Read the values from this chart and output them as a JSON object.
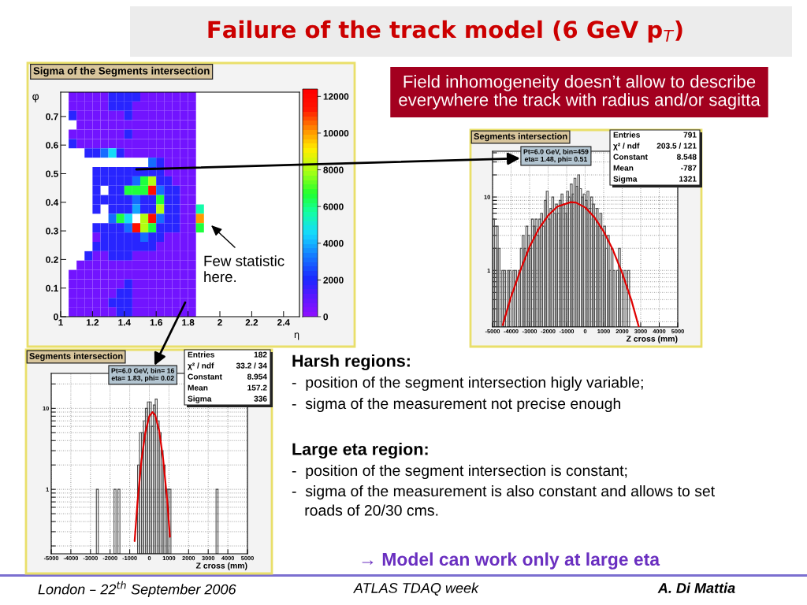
{
  "chart_data": [
    {
      "type": "other",
      "title": "Failure of the track model (6 GeV p$_{T}$)",
      "annotations": [
        "Field inhomogeneity doesn’t allow to describe\neverywhere the track with radius and/or sagitta",
        "Harsh regions:",
        "-  position of the segment intersection higly variable;",
        "-  sigma of the measurement not precise enough",
        "Large eta region:",
        "-  position of the segment intersection is constant;",
        "-  sigma of the measurement is also constant and allows to set\n   roads of 20/30 cms.",
        "→ Model can work only at large eta",
        "London – 22$^{th}$ September 2006",
        "ATLAS TDAQ week",
        "A. Di Mattia"
      ]
    },
    {
      "type": "heatmap",
      "title": "Sigma of the Segments intersection",
      "xlabel": "η",
      "ylabel": "φ",
      "x": [
        1.075,
        1.125,
        1.175,
        1.225,
        1.275,
        1.325,
        1.375,
        1.425,
        1.475,
        1.525,
        1.575,
        1.625,
        1.675,
        1.725,
        1.775,
        1.825,
        1.875
      ],
      "cells": [
        [
          500,
          500,
          500,
          500,
          500,
          1800,
          1800,
          1800,
          1800,
          500,
          500,
          500,
          500,
          500,
          500,
          500,
          null
        ],
        [
          500,
          500,
          500,
          500,
          500,
          1800,
          1800,
          1800,
          500,
          500,
          500,
          500,
          500,
          500,
          500,
          500,
          null
        ],
        [
          1800,
          500,
          500,
          500,
          500,
          500,
          500,
          1800,
          500,
          500,
          500,
          500,
          500,
          500,
          500,
          500,
          null
        ],
        [
          null,
          500,
          500,
          500,
          500,
          500,
          500,
          500,
          500,
          500,
          500,
          500,
          500,
          500,
          500,
          500,
          null
        ],
        [
          500,
          500,
          500,
          500,
          500,
          500,
          500,
          1800,
          500,
          500,
          500,
          500,
          500,
          500,
          500,
          500,
          null
        ],
        [
          1800,
          500,
          500,
          500,
          500,
          500,
          500,
          500,
          500,
          500,
          500,
          500,
          500,
          500,
          500,
          500,
          null
        ],
        [
          null,
          null,
          1800,
          1800,
          3000,
          4500,
          1800,
          500,
          500,
          500,
          500,
          500,
          500,
          500,
          500,
          500,
          null
        ],
        [
          null,
          null,
          null,
          null,
          null,
          null,
          null,
          null,
          null,
          null,
          3000,
          1800,
          500,
          500,
          500,
          500,
          null
        ],
        [
          null,
          null,
          null,
          1800,
          1800,
          1800,
          1800,
          1800,
          1800,
          1800,
          1800,
          1800,
          500,
          500,
          500,
          500,
          null
        ],
        [
          null,
          null,
          null,
          1800,
          1800,
          1800,
          1800,
          1800,
          3000,
          6500,
          8000,
          1800,
          1800,
          500,
          500,
          500,
          null
        ],
        [
          null,
          null,
          null,
          1800,
          null,
          1800,
          1800,
          6500,
          6500,
          6500,
          11500,
          3000,
          1800,
          1800,
          500,
          500,
          null
        ],
        [
          null,
          null,
          null,
          1800,
          1800,
          1800,
          1800,
          1800,
          3000,
          1800,
          1800,
          6500,
          1800,
          1800,
          500,
          500,
          null
        ],
        [
          null,
          null,
          null,
          1800,
          null,
          1800,
          1800,
          1800,
          3800,
          1800,
          1800,
          8000,
          1800,
          1800,
          500,
          500,
          5500
        ],
        [
          null,
          null,
          null,
          null,
          null,
          3000,
          6500,
          4500,
          null,
          8000,
          11500,
          3000,
          1800,
          1800,
          500,
          500,
          10000
        ],
        [
          null,
          null,
          null,
          1800,
          1800,
          1800,
          1800,
          3000,
          11500,
          8000,
          6500,
          1800,
          1800,
          1800,
          500,
          500,
          6500
        ],
        [
          null,
          null,
          null,
          500,
          1800,
          1800,
          1800,
          1800,
          1800,
          3000,
          1800,
          1800,
          500,
          500,
          500,
          500,
          null
        ],
        [
          null,
          null,
          null,
          1800,
          1800,
          1800,
          1800,
          1800,
          1800,
          1800,
          1800,
          500,
          500,
          500,
          500,
          500,
          null
        ],
        [
          null,
          null,
          1800,
          500,
          500,
          1800,
          1800,
          1800,
          500,
          500,
          500,
          500,
          500,
          500,
          500,
          500,
          null
        ],
        [
          null,
          500,
          500,
          500,
          500,
          500,
          500,
          500,
          500,
          500,
          500,
          500,
          500,
          500,
          500,
          500,
          null
        ],
        [
          500,
          500,
          500,
          500,
          500,
          500,
          500,
          500,
          500,
          500,
          500,
          500,
          500,
          500,
          500,
          500,
          null
        ],
        [
          500,
          500,
          500,
          500,
          500,
          500,
          500,
          1800,
          500,
          500,
          500,
          500,
          500,
          500,
          500,
          500,
          null
        ],
        [
          500,
          500,
          500,
          500,
          500,
          500,
          1800,
          1800,
          500,
          500,
          500,
          500,
          500,
          500,
          500,
          500,
          null
        ],
        [
          500,
          500,
          500,
          500,
          500,
          1800,
          1800,
          1800,
          500,
          500,
          500,
          500,
          500,
          500,
          500,
          500,
          null
        ],
        [
          500,
          500,
          500,
          500,
          500,
          500,
          1800,
          1800,
          500,
          500,
          500,
          500,
          500,
          500,
          500,
          500,
          null
        ]
      ],
      "clim": [
        0,
        12400
      ],
      "cticks": [
        0,
        2000,
        4000,
        6000,
        8000,
        10000,
        12000
      ],
      "xlim": [
        1,
        2.5
      ],
      "ylim": [
        0,
        0.785
      ],
      "xticks": [
        1,
        1.2,
        1.4,
        1.6,
        1.8,
        2,
        2.2,
        2.4
      ],
      "yticks": [
        0,
        0.1,
        0.2,
        0.3,
        0.4,
        0.5,
        0.6,
        0.7
      ],
      "annotations": [
        "Pt=6.0 GeV, bin=459\neta= 1.48, phi= 0.51",
        "Pt=6.0 GeV, bin= 16\neta= 1.83, phi= 0.02",
        "Few statistic\nhere."
      ]
    },
    {
      "type": "histogram",
      "title": "Segments intersection",
      "xlabel": "Z cross (mm)",
      "log": "y",
      "grid": true,
      "xlim": [
        -5000,
        5000
      ],
      "ylim": [
        0.17,
        42
      ],
      "xticks": [
        -5000,
        -4000,
        -3000,
        -2000,
        -1000,
        0,
        1000,
        2000,
        3000,
        4000,
        5000
      ],
      "yticks": [
        {
          "value": 0.2,
          "label": null
        },
        {
          "value": 0.3,
          "label": null
        },
        {
          "value": 0.4,
          "label": null
        },
        {
          "value": 0.5,
          "label": null
        },
        {
          "value": 0.6,
          "label": null
        },
        {
          "value": 0.7,
          "label": null
        },
        {
          "value": 0.8,
          "label": null
        },
        {
          "value": 0.9,
          "label": null
        },
        1,
        {
          "value": 2,
          "label": null
        },
        {
          "value": 3,
          "label": null
        },
        {
          "value": 4,
          "label": null
        },
        {
          "value": 5,
          "label": null
        },
        {
          "value": 6,
          "label": null
        },
        {
          "value": 7,
          "label": null
        },
        {
          "value": 8,
          "label": null
        },
        {
          "value": 9,
          "label": null
        },
        10,
        {
          "value": 20,
          "label": null
        },
        {
          "value": 30,
          "label": null
        },
        {
          "value": 40,
          "label": null
        }
      ],
      "bins": [
        -5000,
        -4900,
        -4800,
        -4700,
        -4600,
        -4500,
        -4400,
        -4300,
        -4200,
        -4100,
        -4000,
        -3900,
        -3800,
        -3700,
        -3600,
        -3500,
        -3400,
        -3300,
        -3200,
        -3100,
        -3000,
        -2900,
        -2800,
        -2700,
        -2600,
        -2500,
        -2400,
        -2300,
        -2200,
        -2100,
        -2000,
        -1900,
        -1800,
        -1700,
        -1600,
        -1500,
        -1400,
        -1300,
        -1200,
        -1100,
        -1000,
        -900,
        -800,
        -700,
        -600,
        -500,
        -400,
        -300,
        -200,
        -100,
        0,
        100,
        200,
        300,
        400,
        500,
        600,
        700,
        800,
        900,
        1000,
        1100,
        1200,
        1300,
        1400,
        1500,
        1600,
        1700,
        1800,
        1900,
        2000,
        2100,
        2200,
        2300,
        2400
      ],
      "series": [
        {
          "type": "histogram",
          "color": "#4a4a4a",
          "values": [
            5,
            2,
            4,
            2,
            null,
            1,
            1,
            null,
            1,
            1,
            null,
            1,
            1,
            null,
            1,
            2,
            3,
            2,
            4,
            3,
            2,
            5,
            4,
            5,
            3,
            5,
            6,
            4,
            9,
            12,
            5,
            7,
            10,
            6,
            8,
            6,
            9,
            11,
            8,
            6,
            12,
            10,
            15,
            11,
            18,
            14,
            20,
            13,
            10,
            11,
            9,
            12,
            7,
            10,
            8,
            5,
            7,
            4,
            6,
            3,
            4,
            2,
            3,
            1,
            2,
            1,
            null,
            1,
            2,
            1,
            null,
            1,
            null,
            1
          ]
        },
        {
          "type": "line",
          "color": "#e00000",
          "x": [
            -4450,
            -4000,
            -3500,
            -3000,
            -2500,
            -2000,
            -1500,
            -787,
            -500,
            0,
            500,
            1000,
            1500,
            2000,
            2500,
            2900
          ],
          "values": [
            0.18,
            0.44,
            1.0,
            2.1,
            3.7,
            5.6,
            7.4,
            8.5,
            8.4,
            7.2,
            5.3,
            3.4,
            1.9,
            0.92,
            0.39,
            0.17
          ]
        }
      ],
      "annotations": [
        "Entries",
        "791",
        "χ² / ndf",
        "203.5 / 121",
        "Constant",
        "8.548",
        "Mean",
        "-787",
        "Sigma",
        "1321"
      ]
    },
    {
      "type": "histogram",
      "title": "Segments intersection",
      "xlabel": "Z cross (mm)",
      "log": "y",
      "grid": true,
      "xlim": [
        -5000,
        5000
      ],
      "ylim": [
        0.16,
        27
      ],
      "xticks": [
        -5000,
        -4000,
        -3000,
        -2000,
        -1000,
        0,
        1000,
        2000,
        3000,
        4000,
        5000
      ],
      "yticks": [
        {
          "value": 0.2,
          "label": null
        },
        {
          "value": 0.3,
          "label": null
        },
        {
          "value": 0.4,
          "label": null
        },
        {
          "value": 0.5,
          "label": null
        },
        {
          "value": 0.6,
          "label": null
        },
        {
          "value": 0.7,
          "label": null
        },
        {
          "value": 0.8,
          "label": null
        },
        {
          "value": 0.9,
          "label": null
        },
        1,
        {
          "value": 2,
          "label": null
        },
        {
          "value": 3,
          "label": null
        },
        {
          "value": 4,
          "label": null
        },
        {
          "value": 5,
          "label": null
        },
        {
          "value": 6,
          "label": null
        },
        {
          "value": 7,
          "label": null
        },
        {
          "value": 8,
          "label": null
        },
        {
          "value": 9,
          "label": null
        },
        10,
        {
          "value": 20,
          "label": null
        }
      ],
      "bins": [
        -2700,
        -2600,
        -2500,
        -2400,
        -2300,
        -2200,
        -2100,
        -2000,
        -1900,
        -1800,
        -1700,
        -1600,
        -1500,
        -1400,
        -1300,
        -1200,
        -1100,
        -1000,
        -900,
        -800,
        -700,
        -600,
        -500,
        -400,
        -300,
        -200,
        -100,
        0,
        100,
        200,
        300,
        400,
        500,
        600,
        700,
        800,
        900,
        1000,
        1100,
        1200,
        1300,
        1400,
        1500,
        1600,
        1700,
        1800,
        1900,
        2000,
        2100,
        2200,
        2300,
        2400,
        2500,
        2600,
        2700,
        2800,
        2900,
        3000,
        3100,
        3200,
        3300,
        3400,
        3500
      ],
      "series": [
        {
          "type": "histogram",
          "color": "#4a4a4a",
          "values": [
            1,
            null,
            null,
            null,
            null,
            null,
            null,
            null,
            null,
            1,
            null,
            1,
            null,
            null,
            null,
            null,
            null,
            null,
            null,
            null,
            null,
            2,
            5,
            5,
            7,
            10,
            12,
            12,
            6,
            11,
            13,
            7,
            5,
            3,
            2,
            1,
            1,
            1,
            null,
            null,
            null,
            null,
            null,
            null,
            null,
            null,
            null,
            null,
            null,
            null,
            null,
            null,
            null,
            null,
            null,
            null,
            null,
            null,
            null,
            null,
            null,
            1
          ]
        },
        {
          "type": "line",
          "color": "#e00000",
          "x": [
            -750,
            -600,
            -400,
            -200,
            0,
            157,
            300,
            500,
            700,
            900,
            1050
          ],
          "values": [
            0.23,
            0.71,
            2.3,
            5.1,
            8.0,
            9.0,
            8.2,
            5.3,
            2.4,
            0.78,
            0.26
          ]
        }
      ],
      "annotations": [
        "Entries",
        "182",
        "χ² / ndf",
        "33.2 / 34",
        "Constant",
        "8.954",
        "Mean",
        "157.2",
        "Sigma",
        "336"
      ]
    }
  ]
}
